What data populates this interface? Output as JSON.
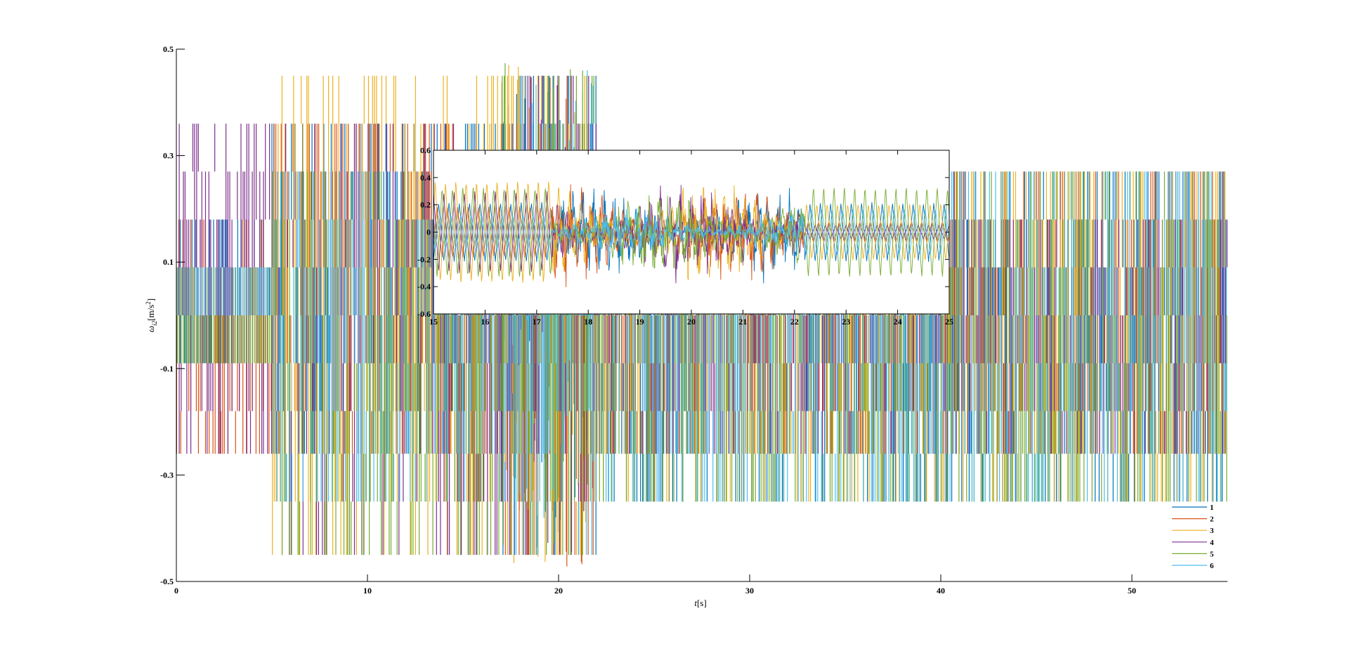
{
  "chart_data": [
    {
      "id": "main",
      "type": "line",
      "title": "",
      "xlabel": "t[s]",
      "ylabel": "ω_i2[m/s²]",
      "xlabel_parts": {
        "symbol": "t",
        "unit": "[s]"
      },
      "ylabel_parts": {
        "symbol": "ω",
        "sub": "i2",
        "unit": "[m/s",
        "sup": "2",
        "close": "]"
      },
      "xlim": [
        0,
        55
      ],
      "ylim": [
        -0.5,
        0.5
      ],
      "xticks": [
        0,
        10,
        20,
        30,
        40,
        50
      ],
      "xtick_labels": [
        "0",
        "10",
        "20",
        "30",
        "40",
        "50"
      ],
      "yticks": [
        -0.5,
        -0.3,
        -0.1,
        0.1,
        0.3,
        0.5
      ],
      "ytick_labels": [
        "-0.5",
        "-0.3",
        "-0.1",
        "0.1",
        "0.3",
        "0.5"
      ],
      "grid": false,
      "legend_position": "bottom-right",
      "series": [
        {
          "name": "1",
          "color": "#0072BD",
          "phases": [
            {
              "t": [
                0,
                5
              ],
              "range": [
                -0.13,
                0.23
              ]
            },
            {
              "t": [
                5,
                17
              ],
              "range": [
                -0.26,
                0.36
              ]
            },
            {
              "t": [
                17,
                22
              ],
              "range": [
                -0.45,
                0.45
              ]
            },
            {
              "t": [
                22,
                55
              ],
              "range": [
                -0.35,
                0.27
              ]
            }
          ]
        },
        {
          "name": "2",
          "color": "#D95319",
          "phases": [
            {
              "t": [
                0,
                5
              ],
              "range": [
                -0.26,
                0.18
              ]
            },
            {
              "t": [
                5,
                17
              ],
              "range": [
                -0.3,
                0.36
              ]
            },
            {
              "t": [
                17,
                22
              ],
              "range": [
                -0.49,
                0.43
              ]
            },
            {
              "t": [
                22,
                55
              ],
              "range": [
                -0.26,
                0.27
              ]
            }
          ]
        },
        {
          "name": "3",
          "color": "#EDB120",
          "phases": [
            {
              "t": [
                0,
                5
              ],
              "range": [
                -0.06,
                0.09
              ]
            },
            {
              "t": [
                5,
                17
              ],
              "range": [
                -0.45,
                0.45
              ]
            },
            {
              "t": [
                17,
                22
              ],
              "range": [
                -0.5,
                0.46
              ]
            },
            {
              "t": [
                22,
                55
              ],
              "range": [
                -0.35,
                0.27
              ]
            }
          ]
        },
        {
          "name": "4",
          "color": "#7E2F8E",
          "phases": [
            {
              "t": [
                0,
                5
              ],
              "range": [
                -0.26,
                0.36
              ]
            },
            {
              "t": [
                5,
                17
              ],
              "range": [
                -0.45,
                0.36
              ]
            },
            {
              "t": [
                17,
                22
              ],
              "range": [
                -0.45,
                0.45
              ]
            },
            {
              "t": [
                22,
                55
              ],
              "range": [
                -0.26,
                0.18
              ]
            }
          ]
        },
        {
          "name": "5",
          "color": "#77AC30",
          "phases": [
            {
              "t": [
                0,
                5
              ],
              "range": [
                -0.13,
                0.0
              ]
            },
            {
              "t": [
                5,
                17
              ],
              "range": [
                -0.45,
                0.27
              ]
            },
            {
              "t": [
                17,
                22
              ],
              "range": [
                -0.45,
                0.45
              ]
            },
            {
              "t": [
                22,
                55
              ],
              "range": [
                -0.35,
                0.27
              ]
            }
          ]
        },
        {
          "name": "6",
          "color": "#4DBEEE",
          "phases": [
            {
              "t": [
                0,
                5
              ],
              "range": [
                0.0,
                0.09
              ]
            },
            {
              "t": [
                5,
                17
              ],
              "range": [
                -0.35,
                0.27
              ]
            },
            {
              "t": [
                17,
                22
              ],
              "range": [
                -0.45,
                0.36
              ]
            },
            {
              "t": [
                22,
                55
              ],
              "range": [
                -0.35,
                0.27
              ]
            }
          ]
        }
      ]
    },
    {
      "id": "inset",
      "type": "line",
      "title": "",
      "xlabel": "",
      "ylabel": "",
      "xlim": [
        15,
        25
      ],
      "ylim": [
        -0.6,
        0.6
      ],
      "xticks": [
        15,
        16,
        17,
        18,
        19,
        20,
        21,
        22,
        23,
        24,
        25
      ],
      "xtick_labels": [
        "15",
        "16",
        "17",
        "18",
        "19",
        "20",
        "21",
        "22",
        "23",
        "24",
        "25"
      ],
      "yticks": [
        -0.6,
        -0.4,
        -0.2,
        0,
        0.2,
        0.4,
        0.6
      ],
      "ytick_labels": [
        "-0.6",
        "-0.4",
        "-0.2",
        "0",
        "0.2",
        "0.4",
        "0.6"
      ],
      "grid": false,
      "period_s": 0.2,
      "series": [
        {
          "name": "1",
          "color": "#0072BD",
          "amplitude": [
            {
              "t": [
                15,
                17.3
              ],
              "amp": 0.22
            },
            {
              "t": [
                17.3,
                22.2
              ],
              "amp": 0.38
            },
            {
              "t": [
                22.2,
                25
              ],
              "amp": 0.22
            }
          ]
        },
        {
          "name": "2",
          "color": "#D95319",
          "amplitude": [
            {
              "t": [
                15,
                17.3
              ],
              "amp": 0.2
            },
            {
              "t": [
                17.3,
                22.2
              ],
              "amp": 0.42
            },
            {
              "t": [
                22.2,
                25
              ],
              "amp": 0.08
            }
          ]
        },
        {
          "name": "3",
          "color": "#EDB120",
          "amplitude": [
            {
              "t": [
                15,
                17.3
              ],
              "amp": 0.4
            },
            {
              "t": [
                17.3,
                22.2
              ],
              "amp": 0.44
            },
            {
              "t": [
                22.2,
                25
              ],
              "amp": 0.22
            }
          ]
        },
        {
          "name": "4",
          "color": "#7E2F8E",
          "amplitude": [
            {
              "t": [
                15,
                17.3
              ],
              "amp": 0.3
            },
            {
              "t": [
                17.3,
                22.2
              ],
              "amp": 0.4
            },
            {
              "t": [
                22.2,
                25
              ],
              "amp": 0.05
            }
          ]
        },
        {
          "name": "5",
          "color": "#77AC30",
          "amplitude": [
            {
              "t": [
                15,
                17.3
              ],
              "amp": 0.35
            },
            {
              "t": [
                17.3,
                22.2
              ],
              "amp": 0.38
            },
            {
              "t": [
                22.2,
                25
              ],
              "amp": 0.35
            }
          ]
        },
        {
          "name": "6",
          "color": "#4DBEEE",
          "amplitude": [
            {
              "t": [
                15,
                17.3
              ],
              "amp": 0.14
            },
            {
              "t": [
                17.3,
                22.2
              ],
              "amp": 0.2
            },
            {
              "t": [
                22.2,
                25
              ],
              "amp": 0.18
            }
          ]
        }
      ]
    }
  ]
}
